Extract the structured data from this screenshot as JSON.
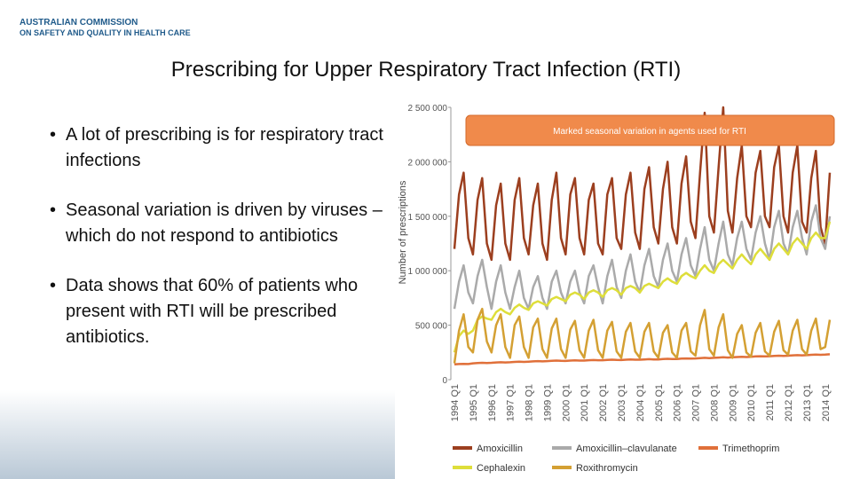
{
  "header": {
    "org_line1": "AUSTRALIAN COMMISSION",
    "org_line2": "ON SAFETY AND QUALITY IN HEALTH CARE"
  },
  "title": "Prescribing for Upper Respiratory Tract Infection (RTI)",
  "bullets": [
    "A lot of prescribing is for respiratory tract infections",
    "Seasonal variation is driven by viruses – which do not respond to antibiotics",
    "Data shows that 60% of patients who present with RTI will be prescribed antibiotics."
  ],
  "chart_data": {
    "type": "line",
    "annotation": "Marked seasonal variation in agents used for RTI",
    "y_label": "Number of prescriptions",
    "ylim": [
      0,
      2500000
    ],
    "yticks": [
      0,
      {
        "value": 500000,
        "label": "500 000"
      },
      {
        "value": 1000000,
        "label": "1 000 000"
      },
      {
        "value": 1500000,
        "label": "1 500 000"
      },
      {
        "value": 2000000,
        "label": "2 000 000"
      },
      {
        "value": 2500000,
        "label": "2 500 000"
      }
    ],
    "legend": "bottom",
    "categories": [
      "1994 Q1",
      null,
      null,
      null,
      "1995 Q1",
      null,
      null,
      null,
      "1996 Q1",
      null,
      null,
      null,
      "1997 Q1",
      null,
      null,
      null,
      "1998 Q1",
      null,
      null,
      null,
      "1999 Q1",
      null,
      null,
      null,
      "2000 Q1",
      null,
      null,
      null,
      "2001 Q1",
      null,
      null,
      null,
      "2002 Q1",
      null,
      null,
      null,
      "2003 Q1",
      null,
      null,
      null,
      "2004 Q1",
      null,
      null,
      null,
      "2005 Q1",
      null,
      null,
      null,
      "2006 Q1",
      null,
      null,
      null,
      "2007 Q1",
      null,
      null,
      null,
      "2008 Q1",
      null,
      null,
      null,
      "2009 Q1",
      null,
      null,
      null,
      "2010 Q1",
      null,
      null,
      null,
      "2011 Q1",
      null,
      null,
      null,
      "2012 Q1",
      null,
      null,
      null,
      "2013 Q1",
      null,
      null,
      null,
      "2014 Q1",
      null
    ],
    "series": [
      {
        "name": "Amoxicillin",
        "color": "#9c3f1f",
        "values": [
          1200000,
          1700000,
          1900000,
          1300000,
          1150000,
          1650000,
          1850000,
          1250000,
          1100000,
          1600000,
          1800000,
          1250000,
          1100000,
          1650000,
          1850000,
          1300000,
          1150000,
          1600000,
          1800000,
          1250000,
          1100000,
          1650000,
          1900000,
          1300000,
          1150000,
          1700000,
          1850000,
          1300000,
          1150000,
          1650000,
          1800000,
          1250000,
          1150000,
          1700000,
          1850000,
          1300000,
          1200000,
          1700000,
          1900000,
          1350000,
          1200000,
          1750000,
          1950000,
          1400000,
          1250000,
          1750000,
          2000000,
          1400000,
          1250000,
          1800000,
          2050000,
          1450000,
          1300000,
          1900000,
          2450000,
          1500000,
          1350000,
          1950000,
          2500000,
          1550000,
          1350000,
          1850000,
          2150000,
          1500000,
          1400000,
          1900000,
          2100000,
          1500000,
          1400000,
          1950000,
          2150000,
          1500000,
          1350000,
          1900000,
          2150000,
          1450000,
          1350000,
          1850000,
          2100000,
          1400000,
          1250000,
          1900000
        ]
      },
      {
        "name": "Amoxicillin–clavulanate",
        "color": "#aaaaaa",
        "values": [
          650000,
          900000,
          1050000,
          800000,
          700000,
          950000,
          1100000,
          850000,
          650000,
          900000,
          1050000,
          800000,
          650000,
          850000,
          1000000,
          750000,
          650000,
          850000,
          950000,
          750000,
          650000,
          900000,
          1000000,
          800000,
          700000,
          900000,
          1000000,
          800000,
          700000,
          950000,
          1050000,
          850000,
          700000,
          950000,
          1100000,
          850000,
          750000,
          1000000,
          1150000,
          900000,
          800000,
          1050000,
          1200000,
          950000,
          850000,
          1100000,
          1250000,
          1000000,
          900000,
          1150000,
          1300000,
          1050000,
          950000,
          1200000,
          1400000,
          1100000,
          1000000,
          1250000,
          1450000,
          1150000,
          1050000,
          1300000,
          1450000,
          1200000,
          1100000,
          1350000,
          1500000,
          1250000,
          1100000,
          1400000,
          1550000,
          1250000,
          1150000,
          1400000,
          1550000,
          1300000,
          1150000,
          1450000,
          1600000,
          1300000,
          1200000,
          1500000
        ]
      },
      {
        "name": "Trimethoprim",
        "color": "#e0703a",
        "values": [
          140000,
          143000,
          145000,
          143000,
          150000,
          153000,
          155000,
          153000,
          155000,
          158000,
          160000,
          158000,
          160000,
          163000,
          165000,
          163000,
          165000,
          168000,
          170000,
          168000,
          170000,
          173000,
          175000,
          173000,
          172000,
          175000,
          177000,
          175000,
          175000,
          178000,
          180000,
          178000,
          178000,
          181000,
          183000,
          181000,
          180000,
          183000,
          185000,
          183000,
          183000,
          186000,
          188000,
          186000,
          186000,
          189000,
          191000,
          189000,
          190000,
          193000,
          195000,
          193000,
          195000,
          198000,
          200000,
          198000,
          200000,
          203000,
          205000,
          203000,
          205000,
          208000,
          210000,
          208000,
          210000,
          213000,
          215000,
          213000,
          215000,
          218000,
          220000,
          218000,
          220000,
          223000,
          225000,
          223000,
          225000,
          228000,
          230000,
          228000,
          230000,
          233000
        ]
      },
      {
        "name": "Cephalexin",
        "color": "#dede3a",
        "values": [
          250000,
          400000,
          450000,
          420000,
          450000,
          550000,
          580000,
          560000,
          550000,
          620000,
          650000,
          620000,
          600000,
          660000,
          690000,
          660000,
          640000,
          700000,
          720000,
          700000,
          680000,
          740000,
          760000,
          740000,
          720000,
          780000,
          800000,
          780000,
          740000,
          800000,
          820000,
          800000,
          760000,
          820000,
          840000,
          820000,
          780000,
          840000,
          860000,
          840000,
          800000,
          860000,
          880000,
          860000,
          840000,
          900000,
          930000,
          900000,
          880000,
          950000,
          980000,
          950000,
          930000,
          1000000,
          1050000,
          1000000,
          980000,
          1060000,
          1100000,
          1060000,
          1020000,
          1100000,
          1150000,
          1100000,
          1060000,
          1150000,
          1200000,
          1150000,
          1100000,
          1200000,
          1250000,
          1200000,
          1150000,
          1250000,
          1300000,
          1250000,
          1200000,
          1300000,
          1350000,
          1300000,
          1300000,
          1450000
        ]
      },
      {
        "name": "Roxithromycin",
        "color": "#d4a033",
        "values": [
          150000,
          450000,
          600000,
          300000,
          250000,
          550000,
          650000,
          350000,
          250000,
          500000,
          600000,
          300000,
          200000,
          500000,
          580000,
          300000,
          200000,
          480000,
          560000,
          280000,
          200000,
          470000,
          560000,
          280000,
          200000,
          460000,
          540000,
          270000,
          200000,
          450000,
          550000,
          270000,
          200000,
          450000,
          530000,
          260000,
          200000,
          440000,
          520000,
          260000,
          200000,
          440000,
          520000,
          260000,
          200000,
          430000,
          500000,
          250000,
          200000,
          450000,
          520000,
          260000,
          220000,
          500000,
          640000,
          280000,
          220000,
          480000,
          600000,
          270000,
          200000,
          420000,
          500000,
          250000,
          210000,
          430000,
          520000,
          260000,
          220000,
          440000,
          540000,
          270000,
          230000,
          450000,
          550000,
          280000,
          230000,
          450000,
          560000,
          280000,
          300000,
          550000
        ]
      }
    ]
  }
}
